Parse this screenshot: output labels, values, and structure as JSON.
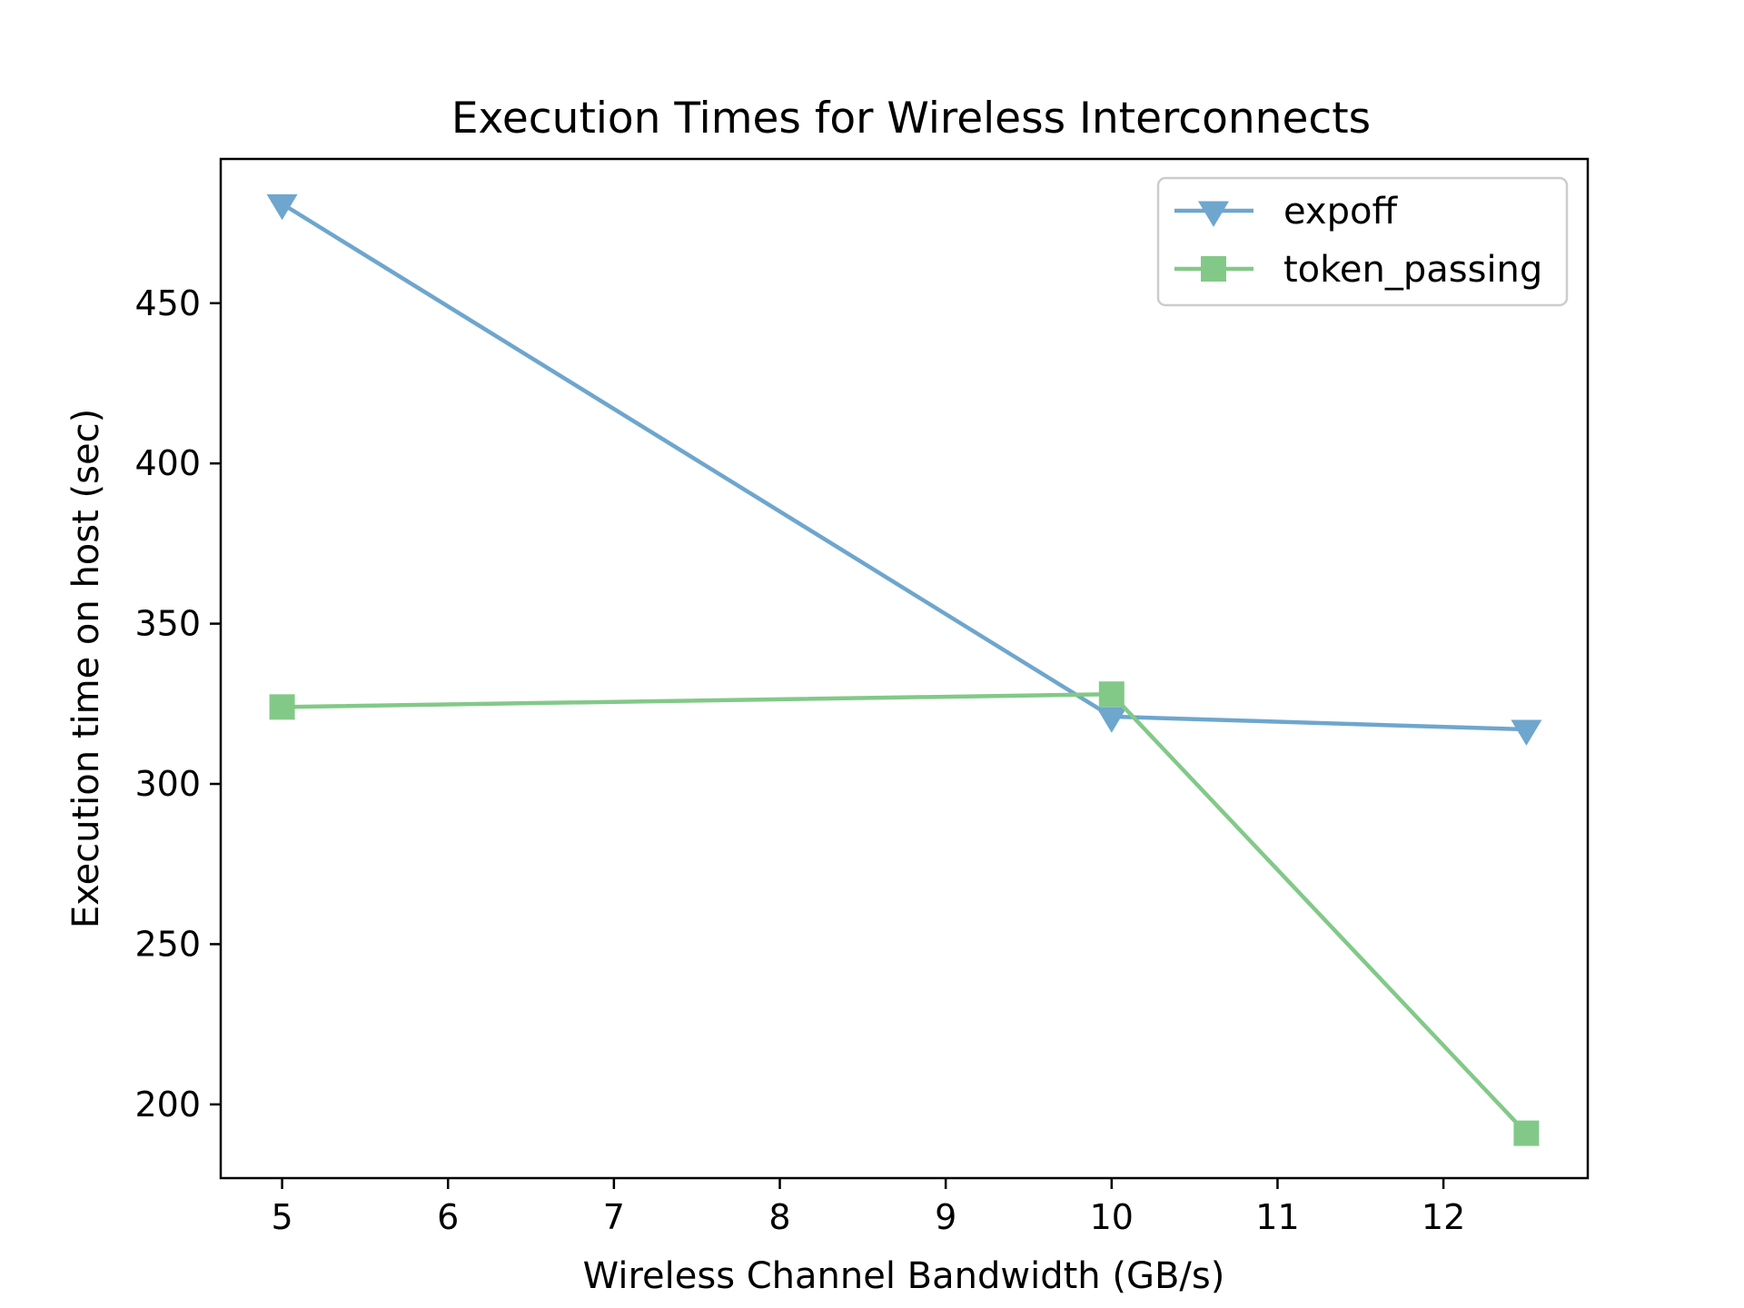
{
  "chart_data": {
    "type": "line",
    "title": "Execution Times for Wireless Interconnects",
    "xlabel": "Wireless Channel Bandwidth (GB/s)",
    "ylabel": "Execution time on host (sec)",
    "xlim": [
      4.63,
      12.87
    ],
    "ylim": [
      177,
      495
    ],
    "xticks": [
      "5",
      "6",
      "7",
      "8",
      "9",
      "10",
      "11",
      "12"
    ],
    "yticks": [
      "200",
      "250",
      "300",
      "350",
      "400",
      "450"
    ],
    "grid": false,
    "legend_position": "top-right",
    "series": [
      {
        "name": "expoff",
        "color": "#6ea6cd",
        "marker": "triangle-down",
        "x": [
          5,
          10,
          12.5
        ],
        "y": [
          481,
          321,
          317
        ]
      },
      {
        "name": "token_passing",
        "color": "#82c988",
        "marker": "square",
        "x": [
          5,
          10,
          12.5
        ],
        "y": [
          324,
          328,
          191
        ]
      }
    ]
  }
}
